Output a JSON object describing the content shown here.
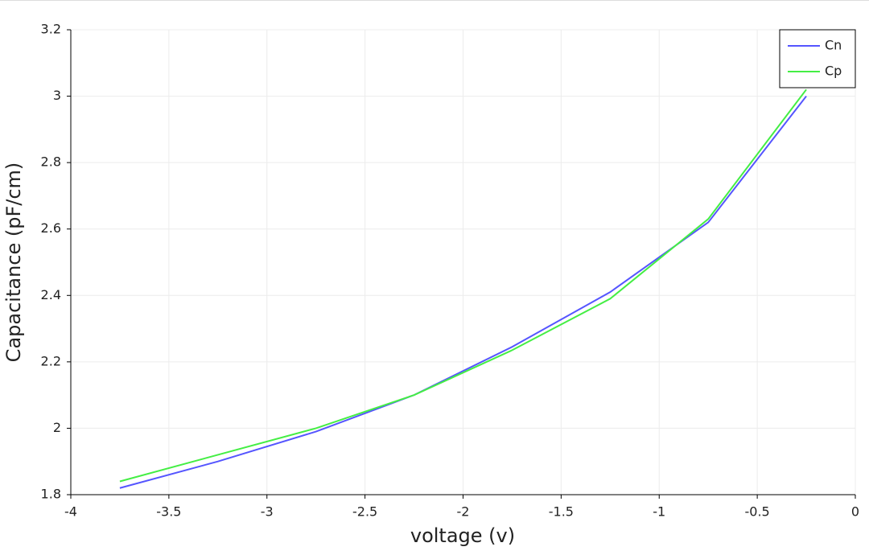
{
  "chart_data": {
    "type": "line",
    "x_label": "voltage (v)",
    "y_label": "Capacitance (pF/cm)",
    "x": [
      -3.75,
      -3.25,
      -2.75,
      -2.25,
      -1.75,
      -1.25,
      -0.75,
      -0.25
    ],
    "series": [
      {
        "name": "Cn",
        "color": "#5555ff",
        "values": [
          1.82,
          1.9,
          1.99,
          2.1,
          2.245,
          2.41,
          2.62,
          3.0
        ]
      },
      {
        "name": "Cp",
        "color": "#44ee44",
        "values": [
          1.84,
          1.92,
          2.0,
          2.1,
          2.235,
          2.39,
          2.63,
          3.02
        ]
      }
    ],
    "xlim": [
      -4,
      0
    ],
    "xticks": [
      -4,
      -3.5,
      -3,
      -2.5,
      -2,
      -1.5,
      -1,
      -0.5,
      0
    ],
    "ylim": [
      1.8,
      3.2
    ],
    "yticks": [
      1.8,
      2,
      2.2,
      2.4,
      2.6,
      2.8,
      3,
      3.2
    ],
    "grid": true,
    "legend": "top-right"
  }
}
